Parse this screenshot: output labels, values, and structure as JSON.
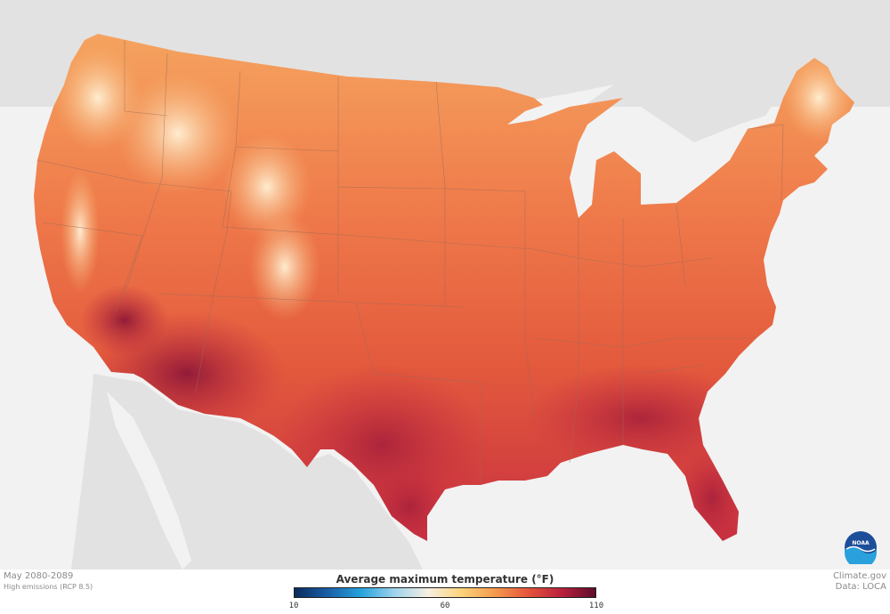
{
  "map": {
    "period": "May 2080-2089",
    "scenario": "High emissions (RCP 8.5)",
    "legend": {
      "title": "Average maximum temperature (°F)",
      "min": 10,
      "max": 110,
      "ticks": [
        10,
        60,
        110
      ],
      "colors": [
        "#0a2a5c",
        "#1a5fa8",
        "#27a3dc",
        "#9fd4ec",
        "#f7efe0",
        "#fbd27a",
        "#f49a4d",
        "#e5533c",
        "#b8203c",
        "#5e0c2a"
      ]
    },
    "credit": "Climate.gov",
    "data_source": "Data: LOCA",
    "logo_text": "NOAA",
    "colors": {
      "background": "#f2f2f2",
      "land_outside": "#e0e0e0",
      "hot": "#b3263d",
      "warm": "#e8613f",
      "mild": "#f39a57",
      "cool": "#fde3c0"
    }
  }
}
